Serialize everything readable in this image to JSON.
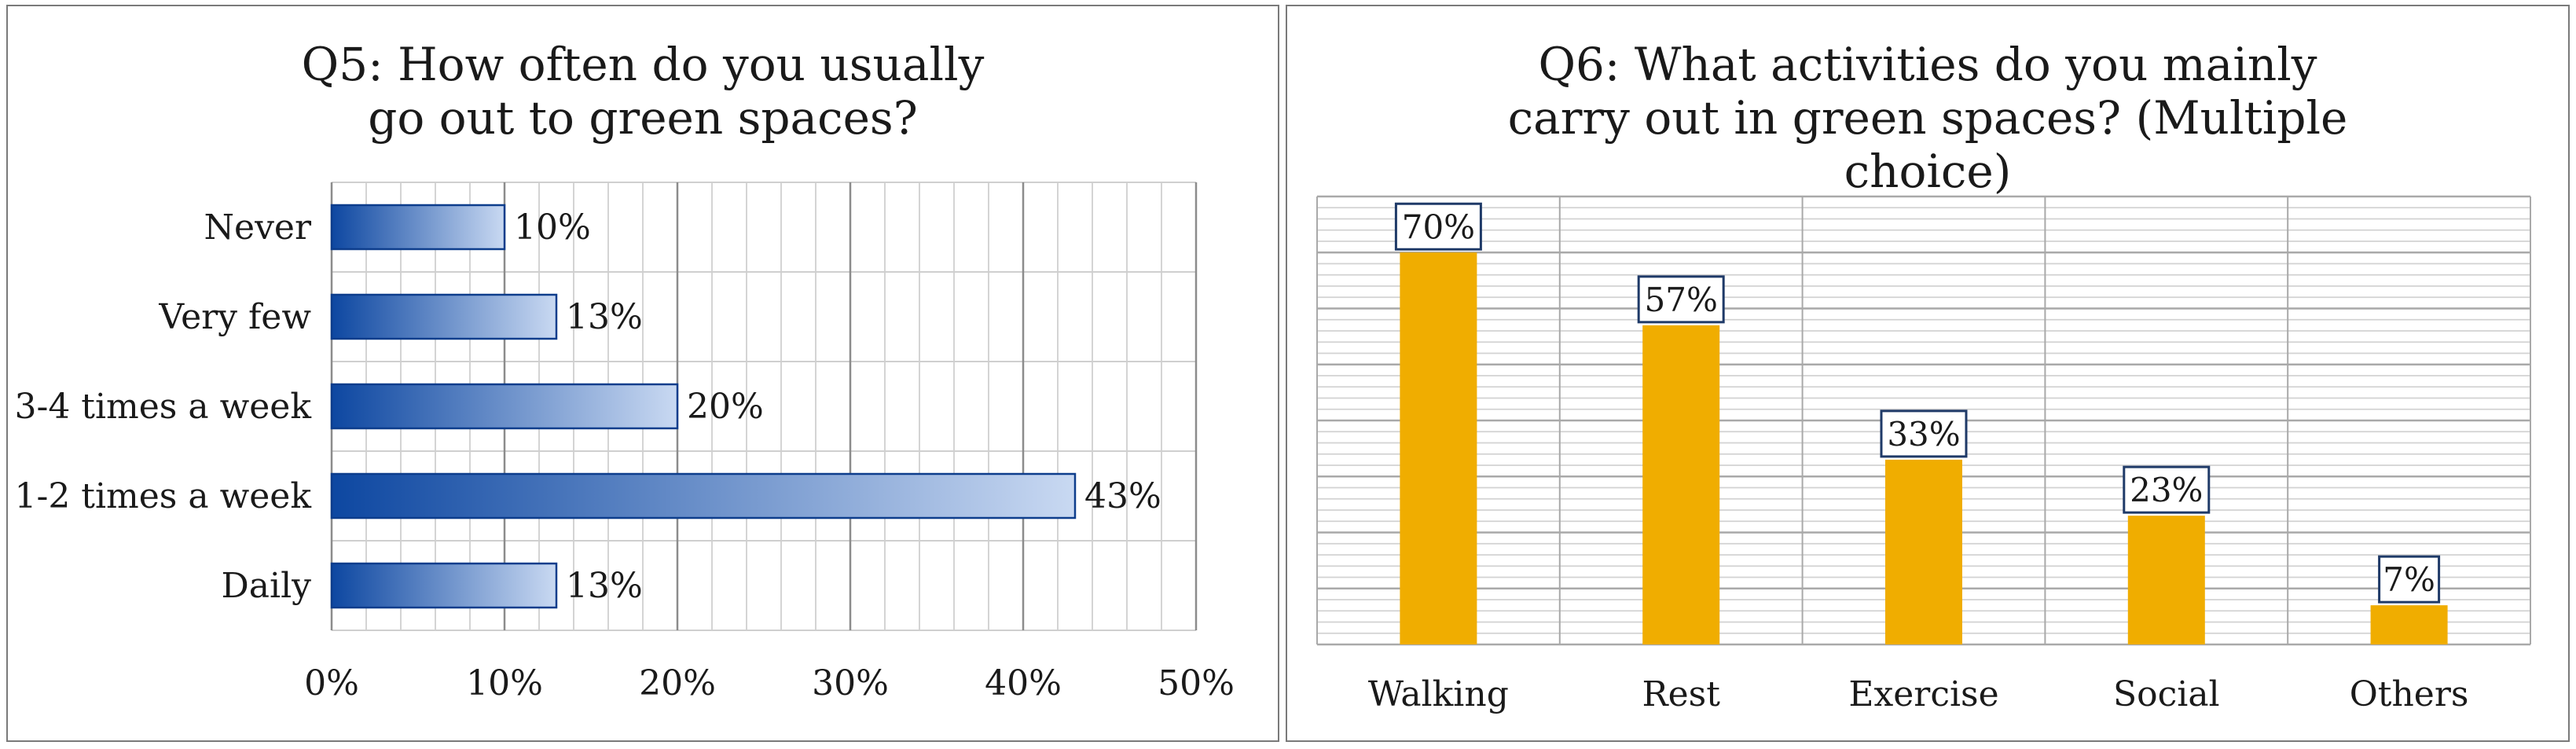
{
  "chart_data": [
    {
      "type": "bar",
      "orientation": "horizontal",
      "title": "Q5: How often do you usually go out to green spaces?",
      "categories": [
        "Never",
        "Very few",
        "3-4 times a week",
        "1-2 times a week",
        "Daily"
      ],
      "values": [
        10,
        13,
        20,
        43,
        13
      ],
      "value_labels": [
        "10%",
        "13%",
        "20%",
        "43%",
        "13%"
      ],
      "x_ticks": [
        0,
        10,
        20,
        30,
        40,
        50
      ],
      "x_tick_labels": [
        "0%",
        "10%",
        "20%",
        "30%",
        "40%",
        "50%"
      ],
      "xlim": [
        0,
        50
      ],
      "xlabel": "",
      "ylabel": "",
      "grid": true,
      "bar_color_dark": "#0d47a1",
      "bar_color_light": "#c9d9f2"
    },
    {
      "type": "bar",
      "orientation": "vertical",
      "title": "Q6: What activities do you mainly carry out in green spaces? (Multiple choice)",
      "categories": [
        "Walking",
        "Rest",
        "Exercise",
        "Social",
        "Others"
      ],
      "values": [
        70,
        57,
        33,
        23,
        7
      ],
      "value_labels": [
        "70%",
        "57%",
        "33%",
        "23%",
        "7%"
      ],
      "ylim": [
        0,
        80
      ],
      "xlabel": "",
      "ylabel": "",
      "grid": true,
      "bar_color": "#f0ad00",
      "label_box_color": "#1f3a68"
    }
  ]
}
